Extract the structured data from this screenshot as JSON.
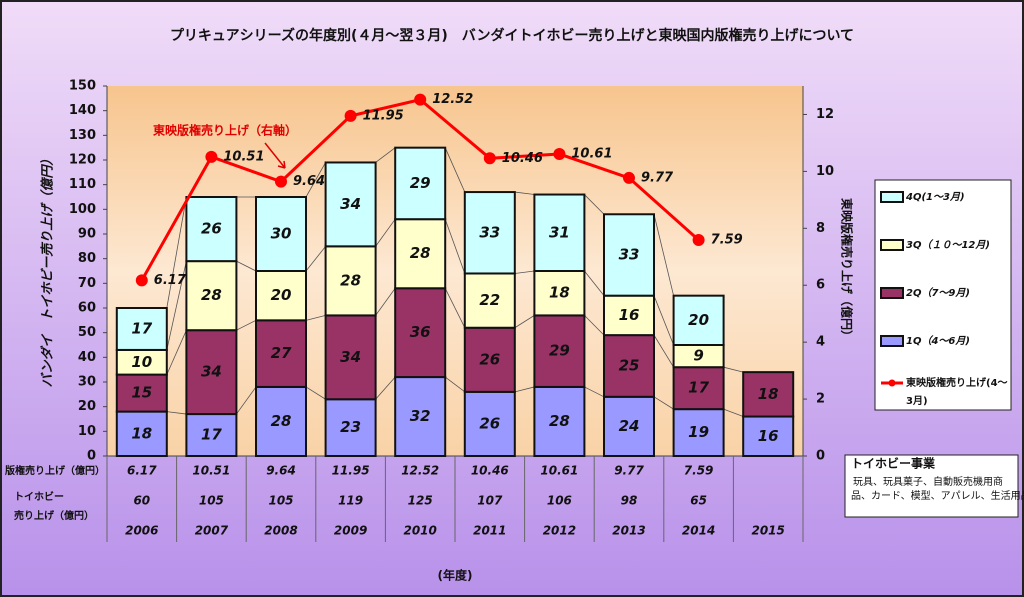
{
  "chart_data": {
    "type": "bar",
    "title": "プリキュアシリーズの年度別(４月～翌３月)　バンダイトイホビー売り上げと東映国内版権売り上げについて",
    "y_label": "バンダイ　トイホビー売り上げ（億円）",
    "y2_label": "東映版権売り上げ（億円）",
    "x_label": "(年度)",
    "annotation": "東映版権売り上げ（右軸）",
    "categories": [
      "2006",
      "2007",
      "2008",
      "2009",
      "2010",
      "2011",
      "2012",
      "2013",
      "2014",
      "2015"
    ],
    "stacked": true,
    "series": [
      {
        "name": "1Q（4～6月)",
        "type": "bar",
        "color": "#9999ff",
        "values": [
          18,
          17,
          28,
          23,
          32,
          26,
          28,
          24,
          19,
          16
        ]
      },
      {
        "name": "2Q（7～9月)",
        "type": "bar",
        "color": "#993366",
        "values": [
          15,
          34,
          27,
          34,
          36,
          26,
          29,
          25,
          17,
          18
        ]
      },
      {
        "name": "3Q（１０～12月)",
        "type": "bar",
        "color": "#ffffcc",
        "values": [
          10,
          28,
          20,
          28,
          28,
          22,
          18,
          16,
          9,
          null
        ]
      },
      {
        "name": "4Q(1～3月)",
        "type": "bar",
        "color": "#ccffff",
        "values": [
          17,
          26,
          30,
          34,
          29,
          33,
          31,
          33,
          20,
          null
        ]
      },
      {
        "name": "東映版権売り上げ(4～3月)",
        "type": "line",
        "axis": "y2",
        "color": "#ff0000",
        "values": [
          6.17,
          10.51,
          9.64,
          11.95,
          12.52,
          10.46,
          10.61,
          9.77,
          7.59,
          null
        ]
      }
    ],
    "ylim": [
      0,
      150
    ],
    "yticks": [
      0,
      10,
      20,
      30,
      40,
      50,
      60,
      70,
      80,
      90,
      100,
      110,
      120,
      130,
      140,
      150
    ],
    "y2lim": [
      0,
      13
    ],
    "y2ticks": [
      0,
      2,
      4,
      6,
      8,
      10,
      12
    ],
    "table": {
      "license_label": "版権売り上げ（億円）",
      "totals_label": [
        "トイホビー",
        "売り上げ（億円）"
      ],
      "totals": [
        60,
        105,
        105,
        119,
        125,
        107,
        106,
        98,
        65,
        null
      ]
    },
    "info": {
      "title": "トイホビー事業",
      "lines": [
        "玩具、玩具菓子、自動販売機用商",
        "品、カード、模型、アパレル、生活用品等"
      ]
    }
  }
}
